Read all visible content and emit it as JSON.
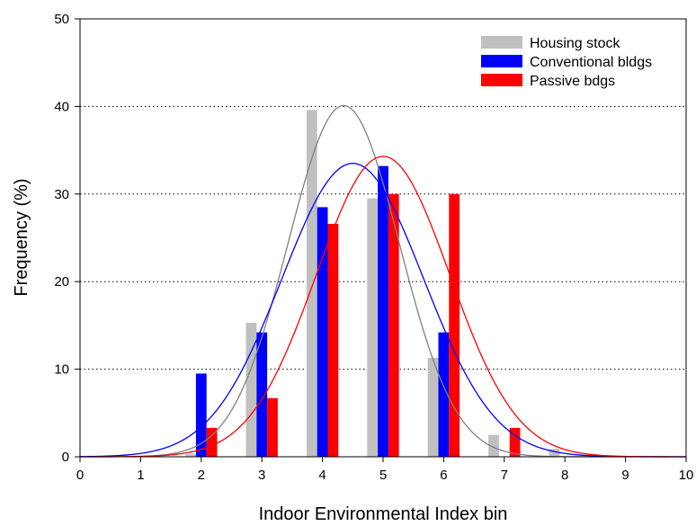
{
  "chart_data": {
    "type": "bar",
    "xlabel": "Indoor Environmental Index bin",
    "ylabel": "Frequency (%)",
    "xlim": [
      0,
      10
    ],
    "ylim": [
      0,
      50
    ],
    "x_ticks": [
      "0",
      "1",
      "2",
      "3",
      "4",
      "5",
      "6",
      "7",
      "8",
      "9",
      "10"
    ],
    "y_ticks": [
      "0",
      "10",
      "20",
      "30",
      "40",
      "50"
    ],
    "grid": "horizontal dotted lines at 10, 20, 30, 40",
    "legend_position": "top-right",
    "categories": [
      2,
      3,
      4,
      5,
      6,
      7,
      8
    ],
    "series": [
      {
        "name": "Housing stock",
        "color": "#c0c0c0",
        "values": [
          0.3,
          15.3,
          39.6,
          29.5,
          11.3,
          2.5,
          0.9
        ]
      },
      {
        "name": "Conventional bldgs",
        "color": "#0000ff",
        "values": [
          9.5,
          14.2,
          28.5,
          33.2,
          14.2,
          0,
          0
        ]
      },
      {
        "name": "Passive bdgs",
        "color": "#ff0000",
        "values": [
          3.3,
          6.7,
          26.6,
          30.0,
          30.0,
          3.3,
          0
        ]
      }
    ],
    "fit_curves": [
      {
        "series": "Housing stock",
        "color": "#808080",
        "shape": "gaussian",
        "peak": 40.1,
        "mean": 4.35,
        "sd": 0.92
      },
      {
        "series": "Conventional bldgs",
        "color": "#0000ff",
        "shape": "gaussian",
        "peak": 33.5,
        "mean": 4.5,
        "sd": 1.17
      },
      {
        "series": "Passive bdgs",
        "color": "#ff0000",
        "shape": "gaussian",
        "peak": 34.3,
        "mean": 5.0,
        "sd": 1.1
      }
    ]
  }
}
